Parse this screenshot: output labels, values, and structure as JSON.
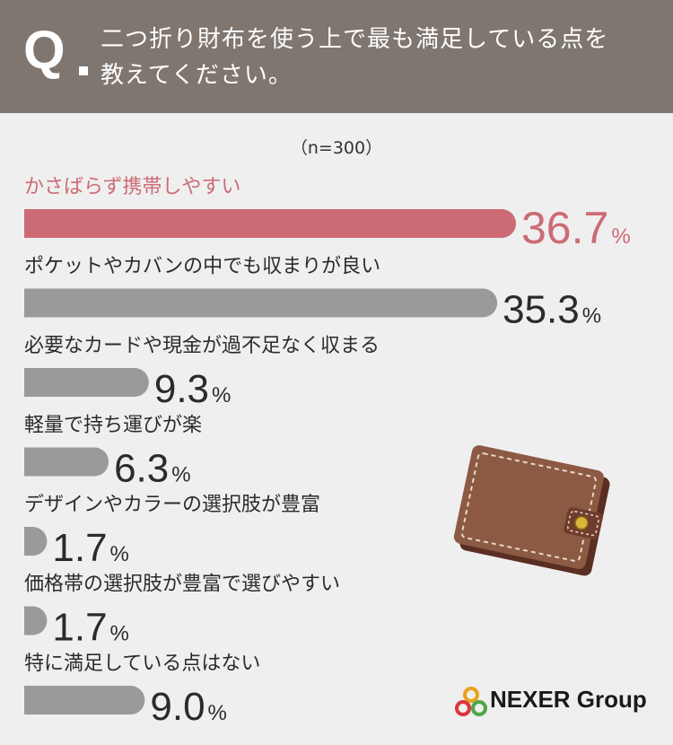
{
  "header": {
    "q_label": "Q",
    "question_line1": "二つ折り財布を使う上で最も満足している点を",
    "question_line2": "教えてください。"
  },
  "sample_size": "（n=300）",
  "chart_data": {
    "type": "bar",
    "orientation": "horizontal",
    "unit": "%",
    "xlim": [
      0,
      36.7
    ],
    "categories": [
      "かさばらず携帯しやすい",
      "ポケットやカバンの中でも収まりが良い",
      "必要なカードや現金が過不足なく収まる",
      "軽量で持ち運びが楽",
      "デザインやカラーの選択肢が豊富",
      "価格帯の選択肢が豊富で選びやすい",
      "特に満足している点はない"
    ],
    "values": [
      36.7,
      35.3,
      9.3,
      6.3,
      1.7,
      1.7,
      9.0
    ],
    "value_labels": [
      "36.7",
      "35.3",
      "9.3",
      "6.3",
      "1.7",
      "1.7",
      "9.0"
    ],
    "highlight_index": 0,
    "colors": {
      "highlight": "#cc6b75",
      "default": "#9a999b",
      "label_highlight": "#cc6b75",
      "label_default": "#2b2b2b"
    }
  },
  "brand": {
    "name": "NEXER Group",
    "logo_icon": "nexer-rings-icon"
  },
  "illustration": {
    "icon": "bifold-wallet-icon"
  }
}
